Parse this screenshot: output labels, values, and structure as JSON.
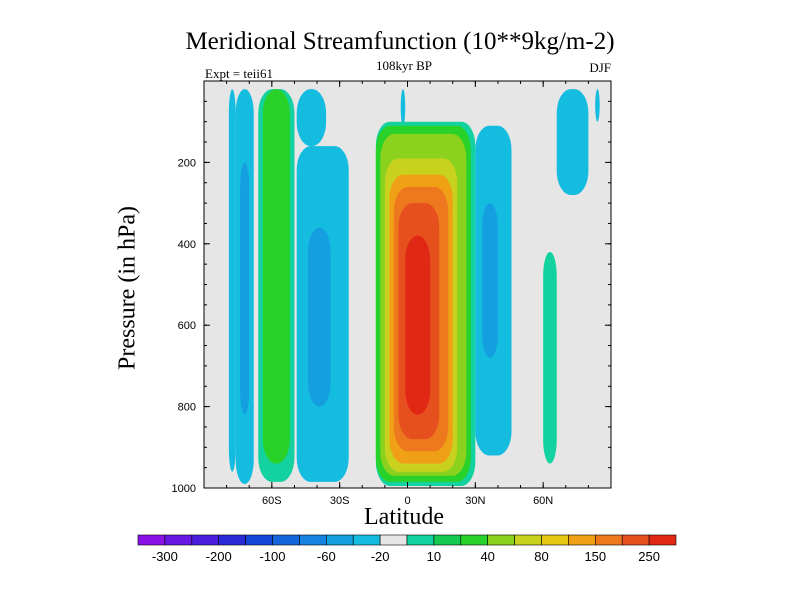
{
  "chart_data": {
    "type": "filled-contour",
    "title": "Meridional Streamfunction (10**9kg/m-2)",
    "subtitle": "108kyr BP",
    "left_annotation": "Expt = teii61",
    "right_annotation": "DJF",
    "xlabel": "Latitude",
    "ylabel": "Pressure (in hPa)",
    "xlim": [
      -90,
      90
    ],
    "ylim": [
      1000,
      0
    ],
    "x_ticks": [
      {
        "value": -60,
        "label": "60S"
      },
      {
        "value": -30,
        "label": "30S"
      },
      {
        "value": 0,
        "label": "0"
      },
      {
        "value": 30,
        "label": "30N"
      },
      {
        "value": 60,
        "label": "60N"
      }
    ],
    "y_ticks": [
      {
        "value": 200,
        "label": "200"
      },
      {
        "value": 400,
        "label": "400"
      },
      {
        "value": 600,
        "label": "600"
      },
      {
        "value": 800,
        "label": "800"
      },
      {
        "value": 1000,
        "label": "1000"
      }
    ],
    "colorbar": {
      "labels": [
        "-300",
        "-200",
        "-100",
        "-60",
        "-20",
        "10",
        "40",
        "80",
        "150",
        "250"
      ],
      "colors": [
        "#8a12e6",
        "#6818e2",
        "#4a1edc",
        "#2a2ad8",
        "#1446d8",
        "#1464dc",
        "#1482de",
        "#14a0e0",
        "#14bce0",
        "#e6e6e6",
        "#14d2a0",
        "#14c850",
        "#28d228",
        "#8ad21e",
        "#c8d21e",
        "#e6c814",
        "#f0a014",
        "#ee781e",
        "#e6501e",
        "#e12814"
      ]
    },
    "cells": [
      {
        "lat": [
          -79,
          -76
        ],
        "p": [
          20,
          960
        ],
        "level": -20
      },
      {
        "lat": [
          -76,
          -68
        ],
        "p": [
          20,
          990
        ],
        "level": -20
      },
      {
        "lat": [
          -74,
          -70
        ],
        "p": [
          200,
          820
        ],
        "level": -60
      },
      {
        "lat": [
          -66,
          -50
        ],
        "p": [
          20,
          985
        ],
        "level": 10
      },
      {
        "lat": [
          -64,
          -52
        ],
        "p": [
          20,
          940
        ],
        "level": 40
      },
      {
        "lat": [
          -49,
          -36
        ],
        "p": [
          20,
          160
        ],
        "level": -20
      },
      {
        "lat": [
          -49,
          -26
        ],
        "p": [
          160,
          985
        ],
        "level": -20
      },
      {
        "lat": [
          -44,
          -34
        ],
        "p": [
          360,
          800
        ],
        "level": -60
      },
      {
        "lat": [
          -3,
          -1
        ],
        "p": [
          20,
          110
        ],
        "level": -20
      },
      {
        "lat": [
          -14,
          30
        ],
        "p": [
          100,
          995
        ],
        "level": 10
      },
      {
        "lat": [
          -14,
          28
        ],
        "p": [
          110,
          985
        ],
        "level": 40
      },
      {
        "lat": [
          -12,
          26
        ],
        "p": [
          130,
          970
        ],
        "level": 60
      },
      {
        "lat": [
          -10,
          22
        ],
        "p": [
          190,
          960
        ],
        "level": 80
      },
      {
        "lat": [
          -8,
          20
        ],
        "p": [
          230,
          940
        ],
        "level": 100
      },
      {
        "lat": [
          -6,
          18
        ],
        "p": [
          260,
          910
        ],
        "level": 150
      },
      {
        "lat": [
          -4,
          14
        ],
        "p": [
          300,
          880
        ],
        "level": 200
      },
      {
        "lat": [
          -1,
          10
        ],
        "p": [
          380,
          820
        ],
        "level": 250
      },
      {
        "lat": [
          30,
          46
        ],
        "p": [
          110,
          920
        ],
        "level": -20
      },
      {
        "lat": [
          33,
          40
        ],
        "p": [
          300,
          680
        ],
        "level": -60
      },
      {
        "lat": [
          60,
          66
        ],
        "p": [
          420,
          940
        ],
        "level": 10
      },
      {
        "lat": [
          66,
          80
        ],
        "p": [
          20,
          280
        ],
        "level": -20
      },
      {
        "lat": [
          83,
          85
        ],
        "p": [
          20,
          100
        ],
        "level": -20
      }
    ]
  }
}
